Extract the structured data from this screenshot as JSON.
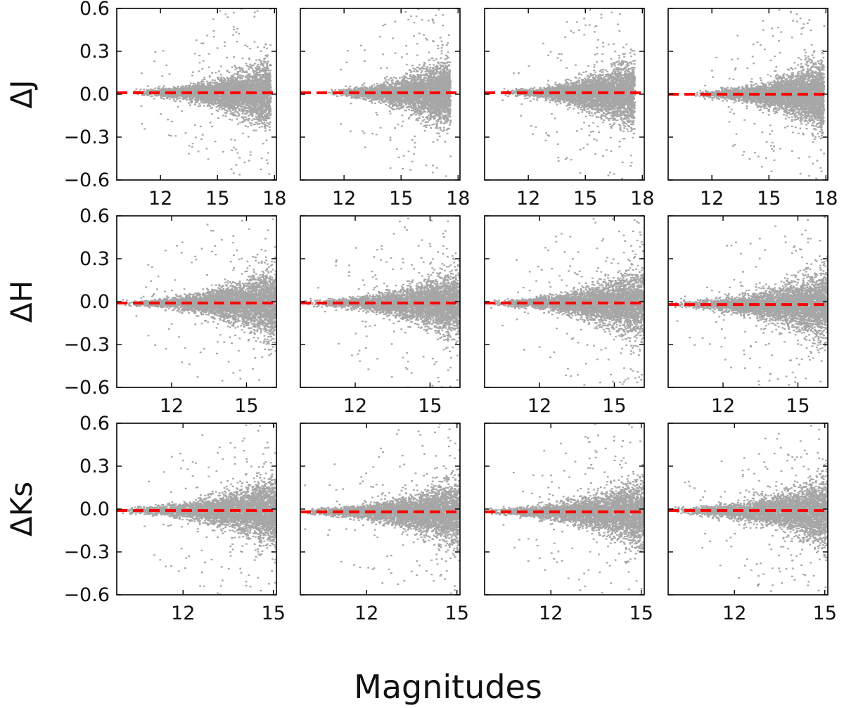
{
  "figure": {
    "xlabel": "Magnitudes"
  },
  "chart_data": [
    {
      "type": "scatter",
      "row": "ΔJ",
      "col": 1,
      "ylabel": "ΔJ",
      "xlim": [
        9.7,
        18.1
      ],
      "ylim": [
        -0.6,
        0.6
      ],
      "xticks": [
        12,
        15,
        18
      ],
      "yticks": [
        -0.6,
        -0.3,
        0.0,
        0.3,
        0.6
      ],
      "ytick_labels": [
        "−0.6",
        "−0.3",
        "0.0",
        "0.3",
        "0.6"
      ],
      "offset_line": 0.01,
      "mag_range": [
        10.5,
        17.8
      ],
      "scatter_color": "#000000",
      "offset_line_color": "#ff0000"
    },
    {
      "type": "scatter",
      "row": "ΔJ",
      "col": 2,
      "xlim": [
        9.7,
        18.1
      ],
      "ylim": [
        -0.6,
        0.6
      ],
      "xticks": [
        12,
        15,
        18
      ],
      "yticks": [
        -0.6,
        -0.3,
        0.0,
        0.3,
        0.6
      ],
      "offset_line": 0.01,
      "mag_range": [
        11.0,
        17.6
      ],
      "scatter_color": "#000000",
      "offset_line_color": "#ff0000"
    },
    {
      "type": "scatter",
      "row": "ΔJ",
      "col": 3,
      "xlim": [
        9.7,
        18.1
      ],
      "ylim": [
        -0.6,
        0.6
      ],
      "xticks": [
        12,
        15,
        18
      ],
      "yticks": [
        -0.6,
        -0.3,
        0.0,
        0.3,
        0.6
      ],
      "offset_line": 0.01,
      "mag_range": [
        10.5,
        17.6
      ],
      "scatter_color": "#000000",
      "offset_line_color": "#ff0000"
    },
    {
      "type": "scatter",
      "row": "ΔJ",
      "col": 4,
      "xlim": [
        9.7,
        18.1
      ],
      "ylim": [
        -0.6,
        0.6
      ],
      "xticks": [
        12,
        15,
        18
      ],
      "yticks": [
        -0.6,
        -0.3,
        0.0,
        0.3,
        0.6
      ],
      "offset_line": 0.0,
      "mag_range": [
        11.0,
        17.9
      ],
      "scatter_color": "#000000",
      "offset_line_color": "#ff0000"
    },
    {
      "type": "scatter",
      "row": "ΔH",
      "col": 1,
      "ylabel": "ΔH",
      "xlim": [
        9.8,
        16.2
      ],
      "ylim": [
        -0.6,
        0.6
      ],
      "xticks": [
        12,
        15
      ],
      "yticks": [
        -0.6,
        -0.3,
        0.0,
        0.3,
        0.6
      ],
      "ytick_labels": [
        "−0.6",
        "−0.3",
        "0.0",
        "0.3",
        "0.6"
      ],
      "offset_line": -0.01,
      "mag_range": [
        9.9,
        16.2
      ],
      "scatter_color": "#000000",
      "offset_line_color": "#ff0000"
    },
    {
      "type": "scatter",
      "row": "ΔH",
      "col": 2,
      "xlim": [
        9.8,
        16.2
      ],
      "ylim": [
        -0.6,
        0.6
      ],
      "xticks": [
        12,
        15
      ],
      "yticks": [
        -0.6,
        -0.3,
        0.0,
        0.3,
        0.6
      ],
      "offset_line": -0.01,
      "mag_range": [
        9.9,
        16.2
      ],
      "scatter_color": "#000000",
      "offset_line_color": "#ff0000"
    },
    {
      "type": "scatter",
      "row": "ΔH",
      "col": 3,
      "xlim": [
        9.8,
        16.2
      ],
      "ylim": [
        -0.6,
        0.6
      ],
      "xticks": [
        12,
        15
      ],
      "yticks": [
        -0.6,
        -0.3,
        0.0,
        0.3,
        0.6
      ],
      "offset_line": -0.01,
      "mag_range": [
        9.9,
        16.2
      ],
      "scatter_color": "#000000",
      "offset_line_color": "#ff0000"
    },
    {
      "type": "scatter",
      "row": "ΔH",
      "col": 4,
      "xlim": [
        9.8,
        16.2
      ],
      "ylim": [
        -0.6,
        0.6
      ],
      "xticks": [
        12,
        15
      ],
      "yticks": [
        -0.6,
        -0.3,
        0.0,
        0.3,
        0.6
      ],
      "offset_line": -0.02,
      "mag_range": [
        9.9,
        16.2
      ],
      "scatter_color": "#000000",
      "offset_line_color": "#ff0000"
    },
    {
      "type": "scatter",
      "row": "ΔKs",
      "col": 1,
      "ylabel": "ΔKs",
      "xlim": [
        9.8,
        15.1
      ],
      "ylim": [
        -0.6,
        0.6
      ],
      "xticks": [
        12,
        15
      ],
      "yticks": [
        -0.6,
        -0.3,
        0.0,
        0.3,
        0.6
      ],
      "ytick_labels": [
        "−0.6",
        "−0.3",
        "0.0",
        "0.3",
        "0.6"
      ],
      "offset_line": -0.01,
      "mag_range": [
        9.8,
        15.1
      ],
      "scatter_color": "#000000",
      "offset_line_color": "#ff0000"
    },
    {
      "type": "scatter",
      "row": "ΔKs",
      "col": 2,
      "xlim": [
        9.8,
        15.1
      ],
      "ylim": [
        -0.6,
        0.6
      ],
      "xticks": [
        12,
        15
      ],
      "yticks": [
        -0.6,
        -0.3,
        0.0,
        0.3,
        0.6
      ],
      "offset_line": -0.02,
      "mag_range": [
        9.8,
        15.1
      ],
      "scatter_color": "#000000",
      "offset_line_color": "#ff0000"
    },
    {
      "type": "scatter",
      "row": "ΔKs",
      "col": 3,
      "xlim": [
        9.8,
        15.1
      ],
      "ylim": [
        -0.6,
        0.6
      ],
      "xticks": [
        12,
        15
      ],
      "yticks": [
        -0.6,
        -0.3,
        0.0,
        0.3,
        0.6
      ],
      "offset_line": -0.02,
      "mag_range": [
        9.8,
        15.1
      ],
      "scatter_color": "#000000",
      "offset_line_color": "#ff0000"
    },
    {
      "type": "scatter",
      "row": "ΔKs",
      "col": 4,
      "xlim": [
        9.8,
        15.1
      ],
      "ylim": [
        -0.6,
        0.6
      ],
      "xticks": [
        12,
        15
      ],
      "yticks": [
        -0.6,
        -0.3,
        0.0,
        0.3,
        0.6
      ],
      "offset_line": -0.01,
      "mag_range": [
        9.8,
        15.1
      ],
      "scatter_color": "#000000",
      "offset_line_color": "#ff0000"
    }
  ]
}
